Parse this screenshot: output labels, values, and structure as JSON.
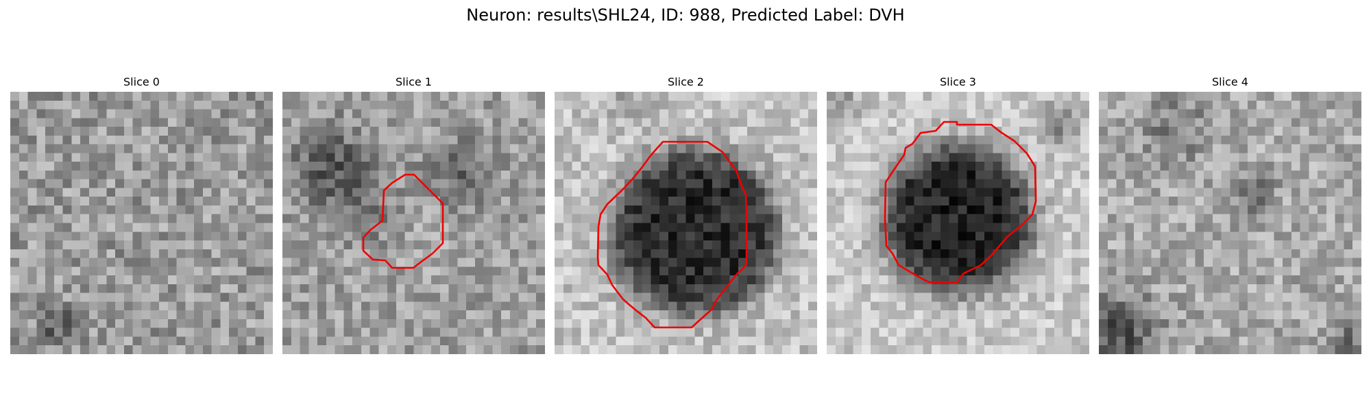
{
  "figure": {
    "title": "Neuron: results\\SHL24, ID: 988, Predicted Label: DVH"
  },
  "colors": {
    "contour": "#ee0000",
    "background": "#ffffff",
    "colormap": "gray"
  },
  "panels": [
    {
      "title": "Slice 0",
      "has_contour": false
    },
    {
      "title": "Slice 1",
      "has_contour": true
    },
    {
      "title": "Slice 2",
      "has_contour": true
    },
    {
      "title": "Slice 3",
      "has_contour": true
    },
    {
      "title": "Slice 4",
      "has_contour": false
    }
  ]
}
